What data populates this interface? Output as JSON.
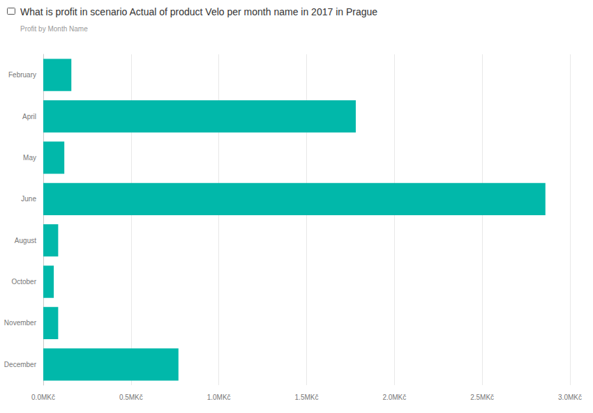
{
  "chart_data": {
    "type": "bar",
    "orientation": "horizontal",
    "title": "What is profit in scenario Actual of product Velo per month name in 2017 in Prague",
    "subtitle": "Profit by Month Name",
    "categories": [
      "February",
      "April",
      "May",
      "June",
      "August",
      "October",
      "November",
      "December"
    ],
    "values": [
      0.16,
      1.78,
      0.12,
      2.86,
      0.085,
      0.06,
      0.085,
      0.77
    ],
    "color": "#01b8aa",
    "xlim": [
      0,
      3.0
    ],
    "xticks": [
      {
        "value": 0,
        "label": "0.0MKč"
      },
      {
        "value": 0.5,
        "label": "0.5MKč"
      },
      {
        "value": 1.0,
        "label": "1.0MKč"
      },
      {
        "value": 1.5,
        "label": "1.5MKč"
      },
      {
        "value": 2.0,
        "label": "2.0MKč"
      },
      {
        "value": 2.5,
        "label": "2.5MKč"
      },
      {
        "value": 3.0,
        "label": "3.0MKč"
      }
    ],
    "grid": true
  }
}
